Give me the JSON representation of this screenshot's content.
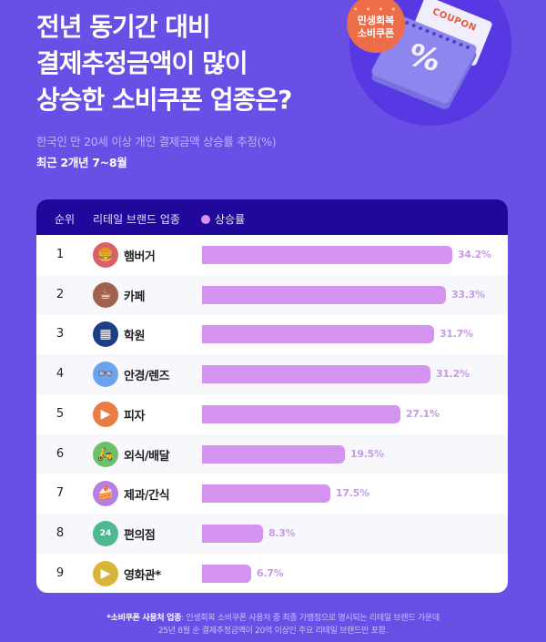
{
  "header": {
    "title_lines": [
      "전년 동기간 대비",
      "결제추정금액이 많이",
      "상승한 소비쿠폰 업종은?"
    ],
    "subtitle": "한국인 만 20세 이상 개인 결제금액 상승률 추정(%)",
    "period": "최근 2개년 7~8월"
  },
  "hero": {
    "badge_dots": "• • • •",
    "badge_line1": "민생회복",
    "badge_line2": "소비쿠폰",
    "coupon_text": "COUPON",
    "coupon_symbol": "%"
  },
  "table": {
    "col_rank": "순위",
    "col_category": "리테일 브랜드 업종",
    "legend_label": "상승률",
    "rows": [
      {
        "rank": "1",
        "category": "햄버거",
        "value": 34.2,
        "label": "34.2%",
        "icon": "hamburger-icon",
        "icon_color": "#d8606a",
        "glyph": "🍔"
      },
      {
        "rank": "2",
        "category": "카페",
        "value": 33.3,
        "label": "33.3%",
        "icon": "coffee-cup-icon",
        "icon_color": "#a0624f",
        "glyph": "☕"
      },
      {
        "rank": "3",
        "category": "학원",
        "value": 31.7,
        "label": "31.7%",
        "icon": "calculator-icon",
        "icon_color": "#1b3d8a",
        "glyph": "▦"
      },
      {
        "rank": "4",
        "category": "안경/렌즈",
        "value": 31.2,
        "label": "31.2%",
        "icon": "glasses-icon",
        "icon_color": "#6aa4ee",
        "glyph": "👓"
      },
      {
        "rank": "5",
        "category": "피자",
        "value": 27.1,
        "label": "27.1%",
        "icon": "pizza-icon",
        "icon_color": "#ea7d45",
        "glyph": "▶"
      },
      {
        "rank": "6",
        "category": "외식/배달",
        "value": 19.5,
        "label": "19.5%",
        "icon": "delivery-scooter-icon",
        "icon_color": "#6cc065",
        "glyph": "🛵"
      },
      {
        "rank": "7",
        "category": "제과/간식",
        "value": 17.5,
        "label": "17.5%",
        "icon": "cake-icon",
        "icon_color": "#b77ee0",
        "glyph": "🍰"
      },
      {
        "rank": "8",
        "category": "편의점",
        "value": 8.3,
        "label": "8.3%",
        "icon": "convenience-store-icon",
        "icon_color": "#4fb893",
        "glyph": "24"
      },
      {
        "rank": "9",
        "category": "영화관*",
        "value": 6.7,
        "label": "6.7%",
        "icon": "movie-clapper-icon",
        "icon_color": "#d8b43a",
        "glyph": "▶"
      }
    ]
  },
  "colors": {
    "background": "#6a4fe6",
    "header_bar": "#21089a",
    "bar": "#d493ef",
    "value_text": "#c79ae8",
    "badge": "#ee6d49"
  },
  "footnote": {
    "bold": "*소비쿠폰 사용처 업종",
    "line1": ": 인생회복 소비쿠폰 사용처 중 최종 가맹점으로 명시되는 리테일 브랜드 가운데",
    "line2": "25년 8월 순 결제추정금액이 20억 이상인 주요 리테일 브랜드만 포함."
  },
  "chart_data": {
    "type": "bar",
    "orientation": "horizontal",
    "title": "전년 동기간 대비 결제추정금액이 많이 상승한 소비쿠폰 업종은?",
    "subtitle": "한국인 만 20세 이상 개인 결제금액 상승률 추정(%)",
    "period": "최근 2개년 7~8월",
    "categories": [
      "햄버거",
      "카페",
      "학원",
      "안경/렌즈",
      "피자",
      "외식/배달",
      "제과/간식",
      "편의점",
      "영화관*"
    ],
    "series": [
      {
        "name": "상승률",
        "values": [
          34.2,
          33.3,
          31.7,
          31.2,
          27.1,
          19.5,
          17.5,
          8.3,
          6.7
        ],
        "unit": "%"
      }
    ],
    "xlabel": "상승률 (%)",
    "ylabel": "리테일 브랜드 업종",
    "grid": false,
    "legend_position": "top"
  }
}
